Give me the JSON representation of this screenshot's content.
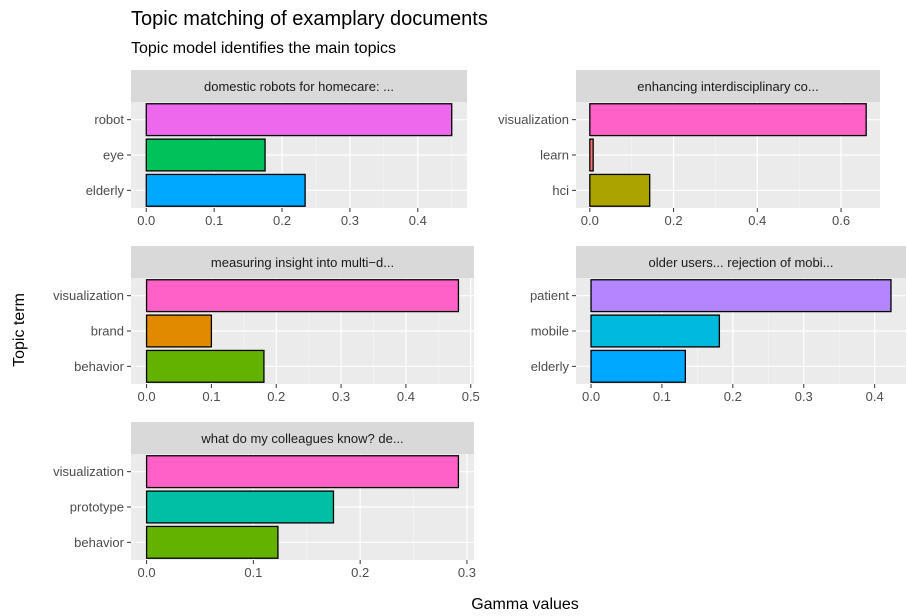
{
  "chart_data": {
    "type": "bar",
    "title": "Topic matching of examplary documents",
    "subtitle": "Topic model identifies the main topics",
    "xlabel": "Gamma values",
    "ylabel": "Topic term",
    "grid": true,
    "facets": [
      {
        "strip": "domestic robots for homecare: ...",
        "categories": [
          "robot",
          "eye",
          "elderly"
        ],
        "values": [
          0.45,
          0.175,
          0.234
        ],
        "colors": [
          "#ED68ED",
          "#00C15A",
          "#00A9FF"
        ],
        "xlim": [
          -0.0225,
          0.4725
        ],
        "ticks": [
          0.0,
          0.1,
          0.2,
          0.3,
          0.4
        ],
        "tick_labels": [
          "0.0",
          "0.1",
          "0.2",
          "0.3",
          "0.4"
        ]
      },
      {
        "strip": "enhancing interdisciplinary co...",
        "categories": [
          "visualization",
          "learn",
          "hci"
        ],
        "values": [
          0.66,
          0.008,
          0.143
        ],
        "colors": [
          "#FF61C9",
          "#F8766D",
          "#ABA300"
        ],
        "xlim": [
          -0.033,
          0.693
        ],
        "ticks": [
          0.0,
          0.2,
          0.4,
          0.6
        ],
        "tick_labels": [
          "0.0",
          "0.2",
          "0.4",
          "0.6"
        ]
      },
      {
        "strip": "measuring insight into multi−d...",
        "categories": [
          "visualization",
          "brand",
          "behavior"
        ],
        "values": [
          0.481,
          0.1,
          0.181
        ],
        "colors": [
          "#FF61C9",
          "#E18A00",
          "#64B200"
        ],
        "xlim": [
          -0.024,
          0.505
        ],
        "ticks": [
          0.0,
          0.1,
          0.2,
          0.3,
          0.4,
          0.5
        ],
        "tick_labels": [
          "0.0",
          "0.1",
          "0.2",
          "0.3",
          "0.4",
          "0.5"
        ]
      },
      {
        "strip": "older users... rejection of mobi...",
        "categories": [
          "patient",
          "mobile",
          "elderly"
        ],
        "values": [
          0.423,
          0.181,
          0.133
        ],
        "colors": [
          "#B385FF",
          "#00BADE",
          "#00A9FF"
        ],
        "xlim": [
          -0.0212,
          0.4442
        ],
        "ticks": [
          0.0,
          0.1,
          0.2,
          0.3,
          0.4
        ],
        "tick_labels": [
          "0.0",
          "0.1",
          "0.2",
          "0.3",
          "0.4"
        ]
      },
      {
        "strip": "what do my colleagues know? de...",
        "categories": [
          "visualization",
          "prototype",
          "behavior"
        ],
        "values": [
          0.292,
          0.175,
          0.123
        ],
        "colors": [
          "#FF61C9",
          "#00BFA5",
          "#64B200"
        ],
        "xlim": [
          -0.0146,
          0.3066
        ],
        "ticks": [
          0.0,
          0.1,
          0.2,
          0.3
        ],
        "tick_labels": [
          "0.0",
          "0.1",
          "0.2",
          "0.3"
        ]
      }
    ]
  }
}
